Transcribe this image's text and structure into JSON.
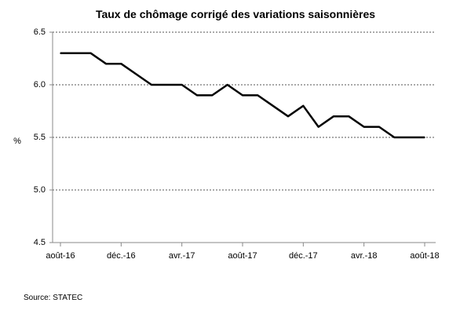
{
  "chart_data": {
    "type": "line",
    "title": "Taux de chômage corrigé des variations saisonnières",
    "ylabel": "%",
    "xlabel": "",
    "ylim": [
      4.5,
      6.5
    ],
    "y_ticks": [
      "4.5",
      "5.0",
      "5.5",
      "6.0",
      "6.5"
    ],
    "y_tick_values": [
      4.5,
      5.0,
      5.5,
      6.0,
      6.5
    ],
    "x_tick_labels": [
      "août-16",
      "déc.-16",
      "avr.-17",
      "août-17",
      "déc.-17",
      "avr.-18",
      "août-18"
    ],
    "x": [
      "août-16",
      "sept.-16",
      "oct.-16",
      "nov.-16",
      "déc.-16",
      "janv.-17",
      "févr.-17",
      "mars-17",
      "avr.-17",
      "mai-17",
      "juin-17",
      "juil.-17",
      "août-17",
      "sept.-17",
      "oct.-17",
      "nov.-17",
      "déc.-17",
      "janv.-18",
      "févr.-18",
      "mars-18",
      "avr.-18",
      "mai-18",
      "juin-18",
      "juil.-18",
      "août-18"
    ],
    "series": [
      {
        "values": [
          6.3,
          6.3,
          6.3,
          6.2,
          6.2,
          6.1,
          6.0,
          6.0,
          6.0,
          5.9,
          5.9,
          6.0,
          5.9,
          5.9,
          5.8,
          5.7,
          5.8,
          5.6,
          5.7,
          5.7,
          5.6,
          5.6,
          5.5,
          5.5,
          5.5
        ],
        "color": "#000000"
      }
    ],
    "grid": "horizontal dashed",
    "legend": "none"
  },
  "footer": {
    "source": "Source: STATEC"
  }
}
